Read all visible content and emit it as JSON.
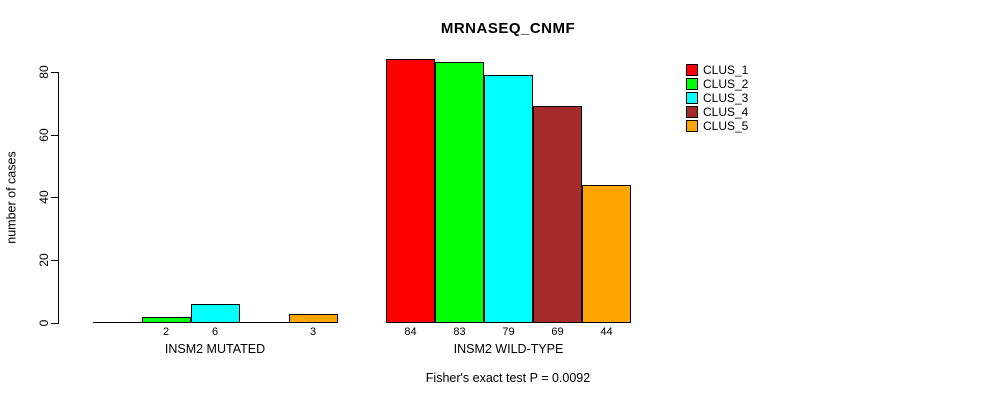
{
  "chart_data": {
    "type": "bar",
    "title": "MRNASEQ_CNMF",
    "subtitle": "Fisher's exact test P = 0.0092",
    "ylabel": "number of cases",
    "xlabel": "",
    "categories": [
      "INSM2 MUTATED",
      "INSM2 WILD-TYPE"
    ],
    "series": [
      {
        "name": "CLUS_1",
        "color": "#ff0000",
        "values": [
          0,
          84
        ]
      },
      {
        "name": "CLUS_2",
        "color": "#00ff00",
        "values": [
          2,
          83
        ]
      },
      {
        "name": "CLUS_3",
        "color": "#00ffff",
        "values": [
          6,
          79
        ]
      },
      {
        "name": "CLUS_4",
        "color": "#a52a2a",
        "values": [
          0,
          69
        ]
      },
      {
        "name": "CLUS_5",
        "color": "#ffa500",
        "values": [
          3,
          44
        ]
      }
    ],
    "bar_value_labels": {
      "INSM2 MUTATED": [
        null,
        2,
        6,
        null,
        3
      ],
      "INSM2 WILD-TYPE": [
        84,
        83,
        79,
        69,
        44
      ]
    },
    "yticks": [
      0,
      20,
      40,
      60,
      80
    ],
    "ylim": [
      0,
      84
    ],
    "grid": false,
    "legend_position": "top-right",
    "legend_entries": [
      "CLUS_1",
      "CLUS_2",
      "CLUS_3",
      "CLUS_4",
      "CLUS_5"
    ],
    "axis_color": "#000000",
    "bar_border_color": "#000000",
    "background_color": "#ffffff"
  }
}
